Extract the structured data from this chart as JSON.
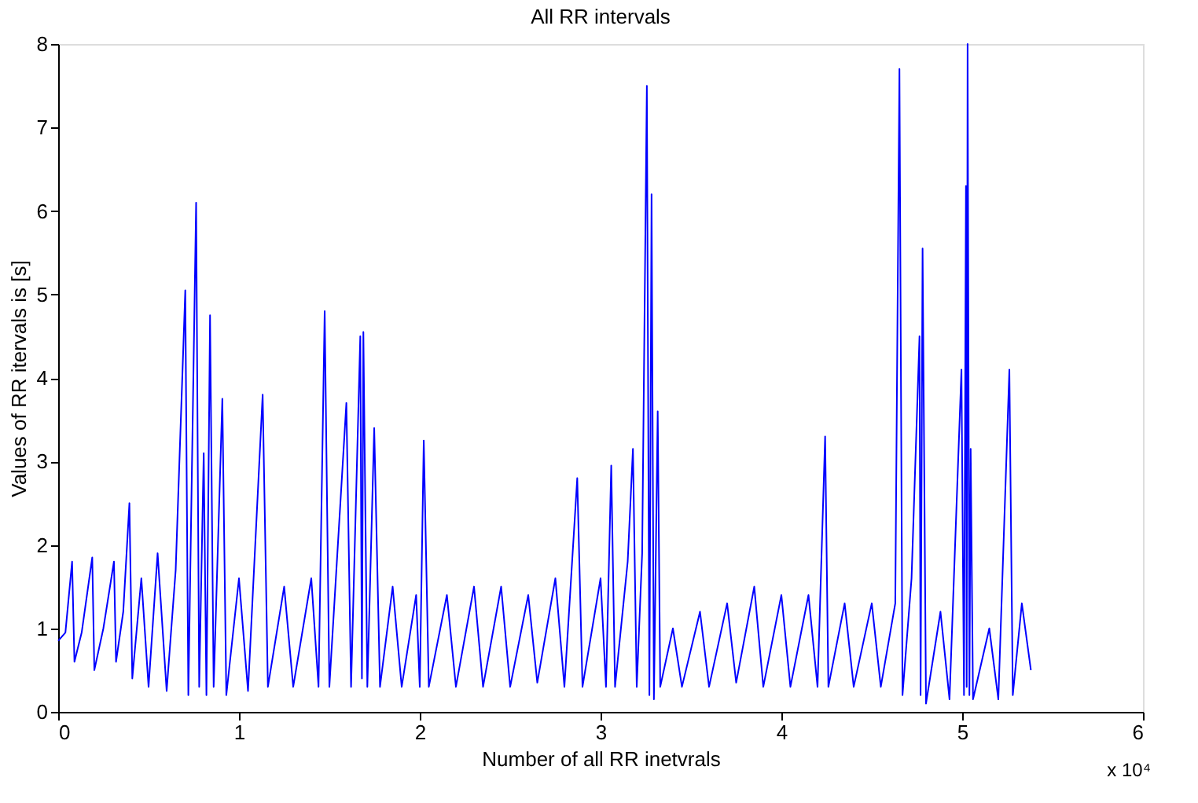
{
  "chart_data": {
    "type": "line",
    "title": "All RR intervals",
    "xlabel": "Number of all RR inetvrals",
    "ylabel": "Values of RR itervals is [s]",
    "annotations": [
      "x 10⁴"
    ],
    "xlim": [
      0,
      6
    ],
    "xticks": [
      0,
      1,
      2,
      3,
      4,
      5,
      6
    ],
    "ylim": [
      0,
      8
    ],
    "yticks": [
      0,
      1,
      2,
      3,
      4,
      5,
      6,
      7,
      8
    ],
    "grid": false,
    "marker": "none",
    "line_style": "solid",
    "series": [
      {
        "color": "#0000ff",
        "x": [
          0,
          0.04,
          0.077,
          0.09,
          0.13,
          0.1885,
          0.2,
          0.25,
          0.3085,
          0.32,
          0.36,
          0.394,
          0.41,
          0.46,
          0.5,
          0.55,
          0.6,
          0.65,
          0.703,
          0.72,
          0.763,
          0.78,
          0.805,
          0.82,
          0.84,
          0.86,
          0.908,
          0.93,
          1.0,
          1.05,
          1.131,
          1.16,
          1.25,
          1.3,
          1.4,
          1.44,
          1.474,
          1.5,
          1.594,
          1.62,
          1.671,
          1.68,
          1.688,
          1.71,
          1.748,
          1.78,
          1.85,
          1.9,
          1.98,
          2.0,
          2.022,
          2.05,
          2.15,
          2.2,
          2.3,
          2.35,
          2.45,
          2.5,
          2.6,
          2.65,
          2.75,
          2.8,
          2.871,
          2.9,
          3.0,
          3.03,
          3.059,
          3.08,
          3.15,
          3.179,
          3.2,
          3.23,
          3.256,
          3.27,
          3.282,
          3.295,
          3.316,
          3.33,
          3.4,
          3.45,
          3.55,
          3.6,
          3.7,
          3.75,
          3.85,
          3.9,
          4.0,
          4.05,
          4.15,
          4.2,
          4.242,
          4.26,
          4.35,
          4.4,
          4.5,
          4.55,
          4.63,
          4.653,
          4.67,
          4.72,
          4.764,
          4.77,
          4.781,
          4.8,
          4.88,
          4.93,
          4.996,
          5.01,
          5.021,
          5.025,
          5.03,
          5.04,
          5.047,
          5.06,
          5.15,
          5.2,
          5.261,
          5.28,
          5.33,
          5.38
        ],
        "values": [
          0.85,
          0.95,
          1.8,
          0.6,
          0.95,
          1.85,
          0.5,
          1.0,
          1.8,
          0.6,
          1.2,
          2.5,
          0.4,
          1.6,
          0.3,
          1.9,
          0.25,
          1.7,
          5.05,
          0.2,
          6.1,
          0.3,
          3.1,
          0.2,
          4.75,
          0.3,
          3.75,
          0.2,
          1.6,
          0.25,
          3.8,
          0.3,
          1.5,
          0.3,
          1.6,
          0.3,
          4.8,
          0.3,
          3.7,
          0.3,
          4.5,
          0.4,
          4.55,
          0.3,
          3.4,
          0.3,
          1.5,
          0.3,
          1.4,
          0.3,
          3.25,
          0.3,
          1.4,
          0.3,
          1.5,
          0.3,
          1.5,
          0.3,
          1.4,
          0.35,
          1.6,
          0.3,
          2.8,
          0.3,
          1.6,
          0.3,
          2.95,
          0.3,
          1.8,
          3.15,
          0.3,
          1.9,
          7.5,
          0.2,
          6.2,
          0.15,
          3.6,
          0.3,
          1.0,
          0.3,
          1.2,
          0.3,
          1.3,
          0.35,
          1.5,
          0.3,
          1.4,
          0.3,
          1.4,
          0.3,
          3.3,
          0.3,
          1.3,
          0.3,
          1.3,
          0.3,
          1.3,
          7.7,
          0.2,
          1.6,
          4.5,
          0.2,
          5.55,
          0.1,
          1.2,
          0.15,
          4.1,
          0.2,
          6.3,
          0.3,
          8.0,
          0.2,
          3.15,
          0.15,
          1.0,
          0.15,
          4.1,
          0.2,
          1.3,
          0.5
        ]
      }
    ]
  }
}
